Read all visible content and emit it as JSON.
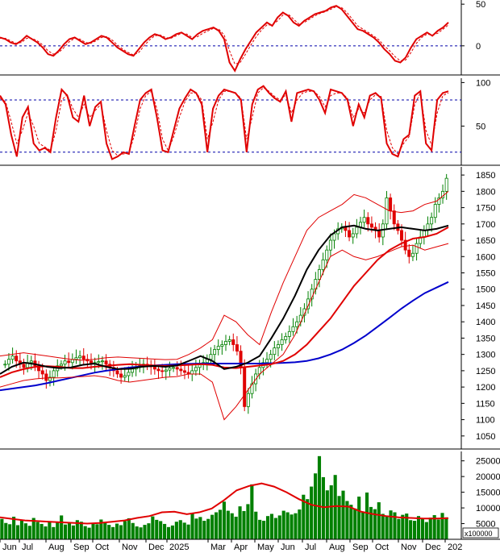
{
  "chart_data": {
    "type": "stock-multi-panel",
    "x_axis": {
      "month_labels": [
        "Jun",
        "Jul",
        "Aug",
        "Sep",
        "Oct",
        "Nov",
        "Dec",
        "2025",
        "Mar",
        "Apr",
        "May",
        "Jun",
        "Jul",
        "Aug",
        "Sep",
        "Oct",
        "Nov",
        "Dec",
        "202"
      ]
    },
    "panels": [
      {
        "id": "oscillator-1",
        "type": "line",
        "y_ticks": [
          0,
          50
        ],
        "ylim": [
          -35,
          55
        ],
        "reference_lines": [
          0
        ],
        "series": [
          {
            "color": "#e00000",
            "style": "solid",
            "values": [
              10,
              8,
              4,
              2,
              6,
              12,
              8,
              4,
              -2,
              -10,
              -12,
              -6,
              2,
              8,
              10,
              6,
              2,
              4,
              8,
              12,
              10,
              4,
              -2,
              -6,
              -10,
              -12,
              -4,
              4,
              10,
              14,
              12,
              8,
              10,
              14,
              16,
              12,
              8,
              14,
              18,
              20,
              22,
              18,
              8,
              -20,
              -30,
              -16,
              -4,
              6,
              16,
              22,
              28,
              24,
              34,
              40,
              36,
              28,
              24,
              30,
              34,
              38,
              40,
              42,
              46,
              48,
              44,
              36,
              28,
              20,
              18,
              14,
              10,
              4,
              -4,
              -10,
              -18,
              -20,
              -14,
              -2,
              8,
              12,
              16,
              12,
              18,
              22,
              28
            ]
          },
          {
            "color": "#e00000",
            "style": "dashed",
            "values": [
              9,
              9,
              6,
              3,
              4,
              9,
              9,
              6,
              1,
              -6,
              -10,
              -8,
              -2,
              5,
              9,
              8,
              4,
              3,
              6,
              10,
              11,
              7,
              1,
              -4,
              -8,
              -11,
              -8,
              0,
              7,
              12,
              13,
              10,
              9,
              12,
              15,
              14,
              10,
              11,
              15,
              18,
              21,
              20,
              13,
              -6,
              -22,
              -20,
              -10,
              1,
              11,
              19,
              25,
              25,
              30,
              37,
              38,
              32,
              26,
              28,
              32,
              36,
              39,
              41,
              44,
              47,
              46,
              40,
              32,
              24,
              20,
              16,
              12,
              7,
              0,
              -6,
              -13,
              -18,
              -17,
              -8,
              3,
              10,
              14,
              13,
              15,
              20,
              25
            ]
          }
        ]
      },
      {
        "id": "oscillator-2",
        "type": "line",
        "y_ticks": [
          50,
          100
        ],
        "ylim": [
          5,
          105
        ],
        "reference_lines": [
          20,
          80
        ],
        "series": [
          {
            "color": "#e00000",
            "style": "solid",
            "values": [
              85,
              75,
              40,
              15,
              60,
              72,
              30,
              22,
              25,
              20,
              60,
              92,
              85,
              60,
              55,
              85,
              50,
              72,
              78,
              30,
              12,
              15,
              20,
              18,
              50,
              80,
              88,
              92,
              60,
              22,
              20,
              45,
              70,
              82,
              92,
              88,
              75,
              20,
              70,
              85,
              92,
              90,
              88,
              80,
              20,
              75,
              92,
              96,
              88,
              82,
              78,
              90,
              55,
              88,
              90,
              92,
              90,
              80,
              65,
              92,
              90,
              88,
              80,
              50,
              75,
              60,
              85,
              88,
              82,
              30,
              18,
              15,
              35,
              40,
              85,
              90,
              30,
              22,
              80,
              88,
              90
            ]
          },
          {
            "color": "#e00000",
            "style": "dashed",
            "values": [
              82,
              78,
              55,
              30,
              45,
              65,
              50,
              30,
              26,
              22,
              45,
              80,
              86,
              70,
              60,
              75,
              60,
              68,
              75,
              45,
              22,
              16,
              18,
              19,
              40,
              70,
              85,
              90,
              70,
              35,
              22,
              38,
              60,
              78,
              88,
              88,
              80,
              35,
              55,
              80,
              90,
              90,
              88,
              82,
              35,
              60,
              88,
              94,
              90,
              84,
              80,
              86,
              65,
              80,
              88,
              90,
              90,
              84,
              72,
              85,
              88,
              88,
              82,
              60,
              70,
              65,
              80,
              86,
              84,
              45,
              25,
              18,
              30,
              38,
              75,
              88,
              45,
              28,
              65,
              85,
              88
            ]
          }
        ]
      },
      {
        "id": "price",
        "type": "candlestick",
        "y_ticks": [
          1050,
          1100,
          1150,
          1200,
          1250,
          1300,
          1350,
          1400,
          1450,
          1500,
          1550,
          1600,
          1650,
          1700,
          1750,
          1800,
          1850
        ],
        "ylim": [
          1010,
          1875
        ],
        "close_series": [
          1270,
          1285,
          1295,
          1280,
          1270,
          1260,
          1275,
          1280,
          1265,
          1250,
          1240,
          1220,
          1230,
          1250,
          1265,
          1270,
          1280,
          1275,
          1285,
          1290,
          1295,
          1285,
          1280,
          1270,
          1275,
          1278,
          1280,
          1270,
          1260,
          1250,
          1240,
          1230,
          1235,
          1245,
          1255,
          1260,
          1265,
          1270,
          1268,
          1262,
          1255,
          1250,
          1248,
          1252,
          1258,
          1260,
          1255,
          1250,
          1245,
          1240,
          1250,
          1260,
          1268,
          1275,
          1285,
          1300,
          1315,
          1325,
          1330,
          1340,
          1345,
          1330,
          1310,
          1260,
          1140,
          1180,
          1210,
          1240,
          1260,
          1275,
          1285,
          1300,
          1320,
          1330,
          1345,
          1355,
          1370,
          1385,
          1400,
          1420,
          1440,
          1470,
          1500,
          1530,
          1560,
          1590,
          1620,
          1650,
          1670,
          1685,
          1690,
          1680,
          1660,
          1670,
          1690,
          1705,
          1720,
          1700,
          1690,
          1680,
          1660,
          1700,
          1780,
          1740,
          1700,
          1680,
          1650,
          1620,
          1600,
          1610,
          1640,
          1660,
          1680,
          1700,
          1720,
          1760,
          1780,
          1800,
          1840
        ],
        "indicators": [
          {
            "name": "moving-average",
            "color": "#0000cc",
            "values": [
              1190,
              1195,
              1200,
              1205,
              1212,
              1220,
              1228,
              1236,
              1244,
              1250,
              1255,
              1260,
              1263,
              1266,
              1268,
              1270,
              1271,
              1272,
              1272,
              1272,
              1272,
              1272,
              1272,
              1273,
              1274,
              1276,
              1280,
              1288,
              1300,
              1315,
              1335,
              1358,
              1385,
              1412,
              1440,
              1465,
              1488,
              1505,
              1522
            ]
          },
          {
            "name": "moving-average",
            "color": "#e00000",
            "values": [
              1230,
              1245,
              1255,
              1262,
              1264,
              1262,
              1258,
              1258,
              1262,
              1265,
              1268,
              1270,
              1268,
              1266,
              1265,
              1266,
              1268,
              1270,
              1268,
              1260,
              1258,
              1262,
              1266,
              1270,
              1280,
              1300,
              1330,
              1370,
              1410,
              1460,
              1510,
              1550,
              1590,
              1620,
              1640,
              1655,
              1660,
              1670,
              1690
            ]
          },
          {
            "name": "moving-average",
            "color": "#000000",
            "values": [
              1240,
              1262,
              1275,
              1270,
              1262,
              1258,
              1260,
              1268,
              1272,
              1262,
              1255,
              1256,
              1262,
              1265,
              1262,
              1266,
              1280,
              1295,
              1280,
              1255,
              1262,
              1275,
              1295,
              1350,
              1410,
              1480,
              1560,
              1620,
              1665,
              1690,
              1695,
              1685,
              1680,
              1685,
              1690,
              1685,
              1680,
              1685,
              1695
            ]
          },
          {
            "name": "bollinger-upper",
            "color": "#e00000",
            "values": [
              1295,
              1300,
              1305,
              1300,
              1295,
              1290,
              1285,
              1282,
              1285,
              1290,
              1292,
              1290,
              1288,
              1286,
              1284,
              1285,
              1300,
              1320,
              1345,
              1420,
              1400,
              1360,
              1330,
              1430,
              1520,
              1600,
              1680,
              1720,
              1740,
              1760,
              1790,
              1780,
              1760,
              1740,
              1735,
              1740,
              1760,
              1770,
              1800
            ]
          },
          {
            "name": "bollinger-lower",
            "color": "#e00000",
            "values": [
              1200,
              1210,
              1220,
              1225,
              1228,
              1228,
              1230,
              1232,
              1235,
              1230,
              1220,
              1215,
              1220,
              1225,
              1230,
              1232,
              1240,
              1240,
              1215,
              1100,
              1140,
              1190,
              1240,
              1270,
              1300,
              1360,
              1440,
              1520,
              1600,
              1620,
              1600,
              1590,
              1600,
              1615,
              1630,
              1635,
              1620,
              1630,
              1640
            ]
          }
        ]
      },
      {
        "id": "volume",
        "type": "bar",
        "unit_label": "x100000",
        "y_ticks": [
          5000,
          10000,
          15000,
          20000,
          25000
        ],
        "ylim": [
          0,
          28000
        ],
        "bar_color": "#008000",
        "values": [
          6500,
          5200,
          4800,
          7200,
          4500,
          6000,
          5100,
          4300,
          6800,
          5500,
          4900,
          4100,
          5800,
          3900,
          5300,
          7600,
          4700,
          5100,
          4400,
          6100,
          5600,
          4200,
          3700,
          5200,
          4800,
          6300,
          5400,
          4600,
          3900,
          5000,
          4500,
          5800,
          6700,
          5200,
          4100,
          3800,
          4600,
          5100,
          7300,
          6200,
          5800,
          4900,
          3900,
          4400,
          5600,
          6100,
          5300,
          4700,
          8200,
          6600,
          7100,
          5900,
          6500,
          7800,
          8600,
          9400,
          12000,
          9100,
          8300,
          7200,
          10500,
          9000,
          11200,
          17500,
          8800,
          6200,
          5900,
          7400,
          8100,
          6800,
          7600,
          9100,
          8600,
          7900,
          8300,
          9500,
          14200,
          12800,
          16800,
          21000,
          26500,
          19800,
          15600,
          17200,
          20500,
          13800,
          15500,
          12200,
          11000,
          9800,
          13600,
          8700,
          14900,
          10300,
          9600,
          11800,
          8100,
          7300,
          9200,
          8600,
          6500,
          7800,
          8200,
          6100,
          5900,
          7400,
          6800,
          5500,
          6900,
          7700,
          6300,
          8400,
          7000
        ],
        "moving_average": [
          7000,
          6500,
          6000,
          5800,
          5600,
          5400,
          5200,
          5000,
          5200,
          5600,
          6000,
          6800,
          7400,
          8600,
          8800,
          8000,
          8600,
          9800,
          12500,
          15600,
          17000,
          17800,
          16800,
          15000,
          12800,
          11000,
          10200,
          10600,
          10400,
          8800,
          8000,
          7400,
          7000,
          6800,
          6600,
          6600,
          6700
        ],
        "moving_average_color": "#e00000"
      }
    ]
  }
}
